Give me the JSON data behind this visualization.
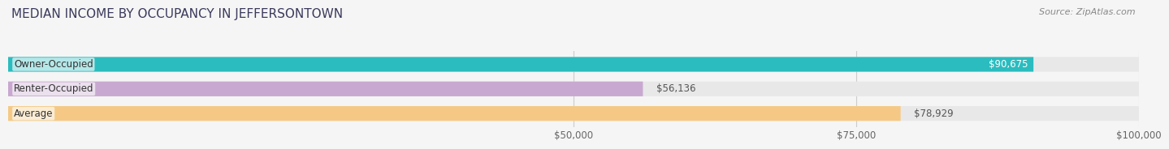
{
  "title": "MEDIAN INCOME BY OCCUPANCY IN JEFFERSONTOWN",
  "source": "Source: ZipAtlas.com",
  "categories": [
    "Owner-Occupied",
    "Renter-Occupied",
    "Average"
  ],
  "values": [
    90675,
    56136,
    78929
  ],
  "bar_colors": [
    "#2bbcbf",
    "#c8a8d0",
    "#f5c985"
  ],
  "value_labels": [
    "$90,675",
    "$56,136",
    "$78,929"
  ],
  "value_label_inside": [
    true,
    false,
    false
  ],
  "xlim": [
    0,
    100000
  ],
  "xticks": [
    50000,
    75000,
    100000
  ],
  "xtick_labels": [
    "$50,000",
    "$75,000",
    "$100,000"
  ],
  "bar_height": 0.6,
  "background_color": "#f5f5f5",
  "track_color": "#e8e8e8",
  "title_color": "#3a3a5c",
  "title_fontsize": 11,
  "source_fontsize": 8,
  "label_fontsize": 8.5,
  "value_fontsize": 8.5,
  "tick_fontsize": 8.5,
  "grid_color": "#cccccc",
  "grid_linewidth": 0.8
}
